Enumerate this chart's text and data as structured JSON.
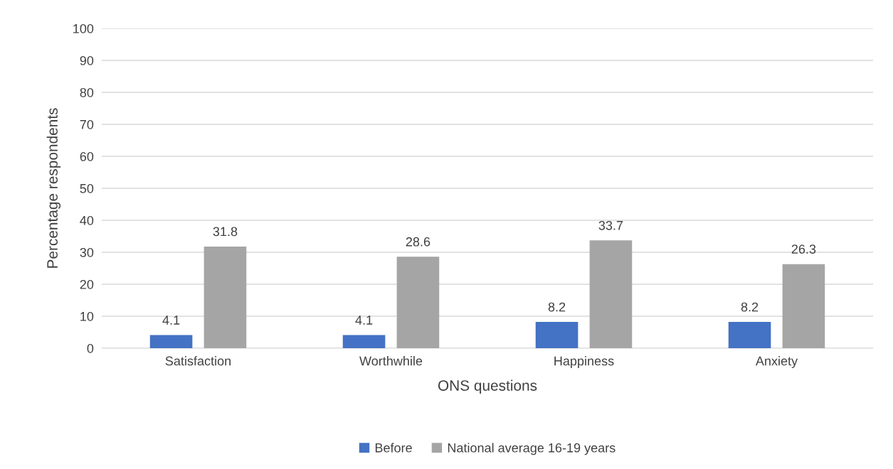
{
  "chart_data": {
    "type": "bar",
    "xlabel": "ONS questions",
    "ylabel": "Percentage respondents",
    "categories": [
      "Satisfaction",
      "Worthwhile",
      "Happiness",
      "Anxiety"
    ],
    "series": [
      {
        "name": "Before",
        "color": "#4472c4",
        "values": [
          4.1,
          4.1,
          8.2,
          8.2
        ]
      },
      {
        "name": "National average 16-19 years",
        "color": "#a5a5a5",
        "values": [
          31.8,
          28.6,
          33.7,
          26.3
        ]
      }
    ],
    "ylim": [
      0,
      100
    ],
    "yticks": [
      0,
      10,
      20,
      30,
      40,
      50,
      60,
      70,
      80,
      90,
      100
    ],
    "grid": "y",
    "legend": "bottom",
    "data_labels": true
  }
}
